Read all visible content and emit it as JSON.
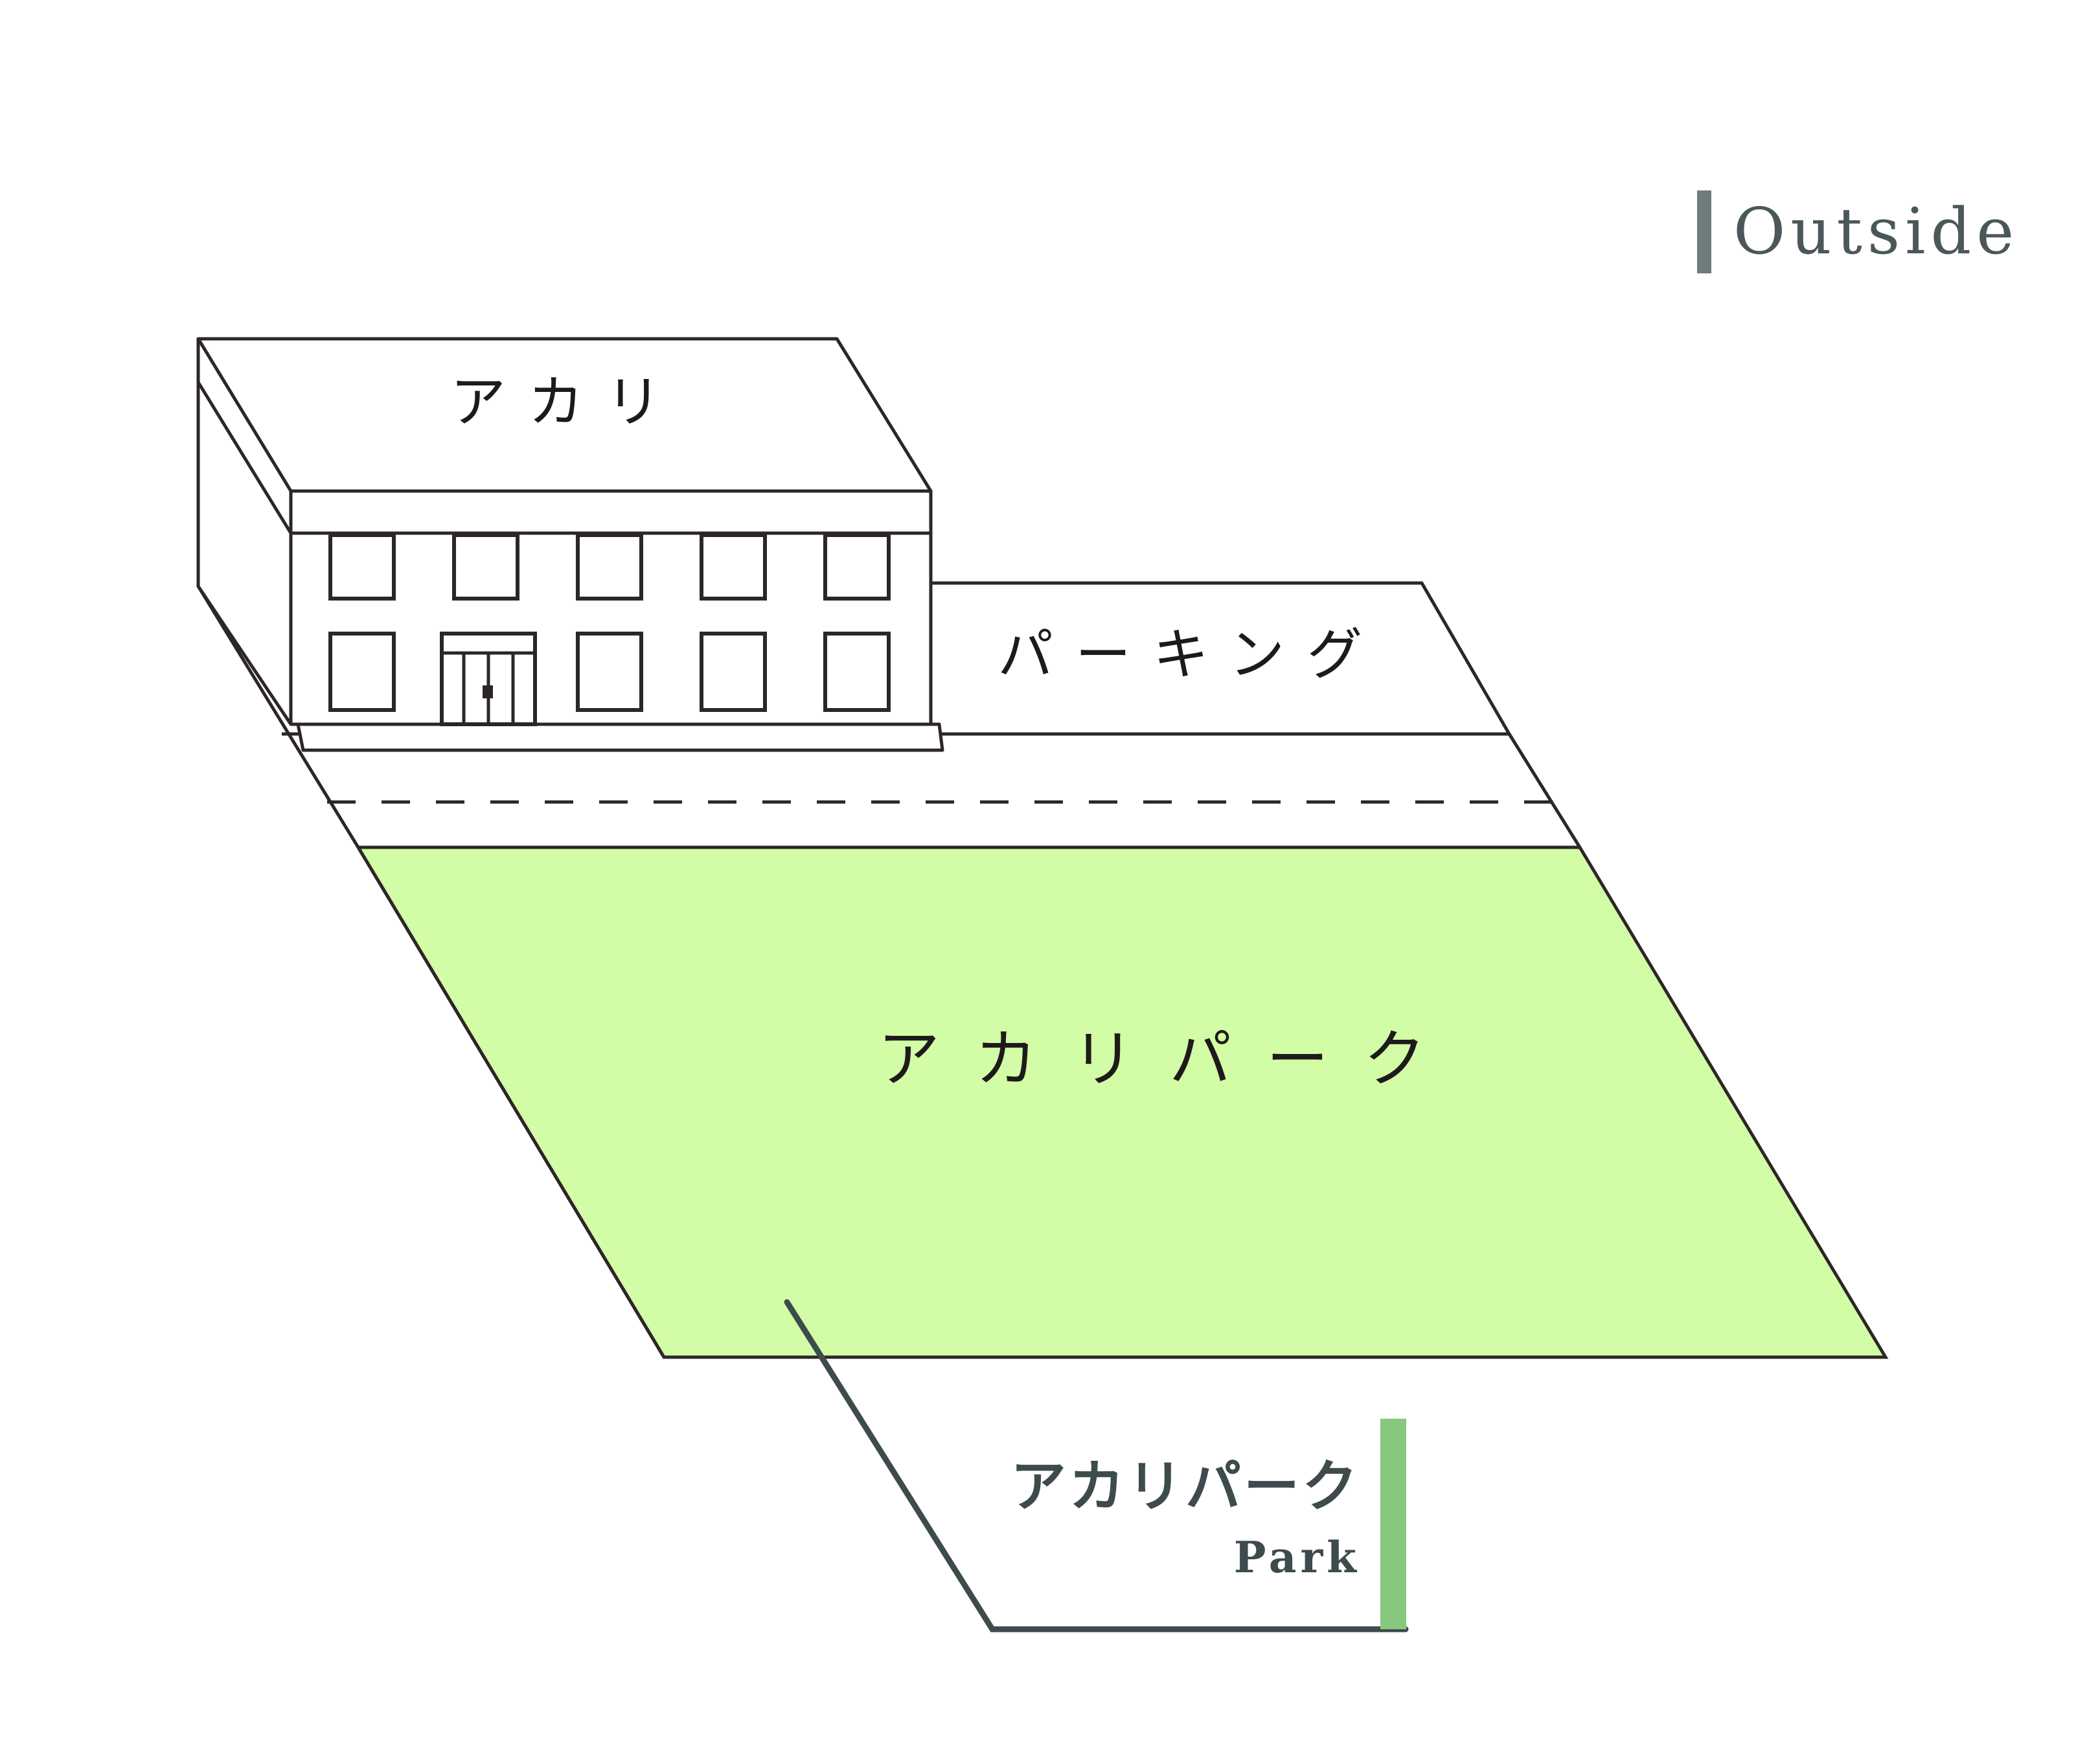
{
  "section": {
    "title": "Outside",
    "marker_color": "#6f7b7c",
    "text_color": "#4b585a"
  },
  "map": {
    "building_sign": "アカリ",
    "parking_label": "パーキング",
    "park_label": "アカリパーク",
    "park_fill": "#d2fca6",
    "line_color": "#2d2626"
  },
  "callout": {
    "title": "アカリパーク",
    "subtitle": "Park",
    "accent_color": "#86c97e",
    "text_color": "#3d4b4c"
  }
}
